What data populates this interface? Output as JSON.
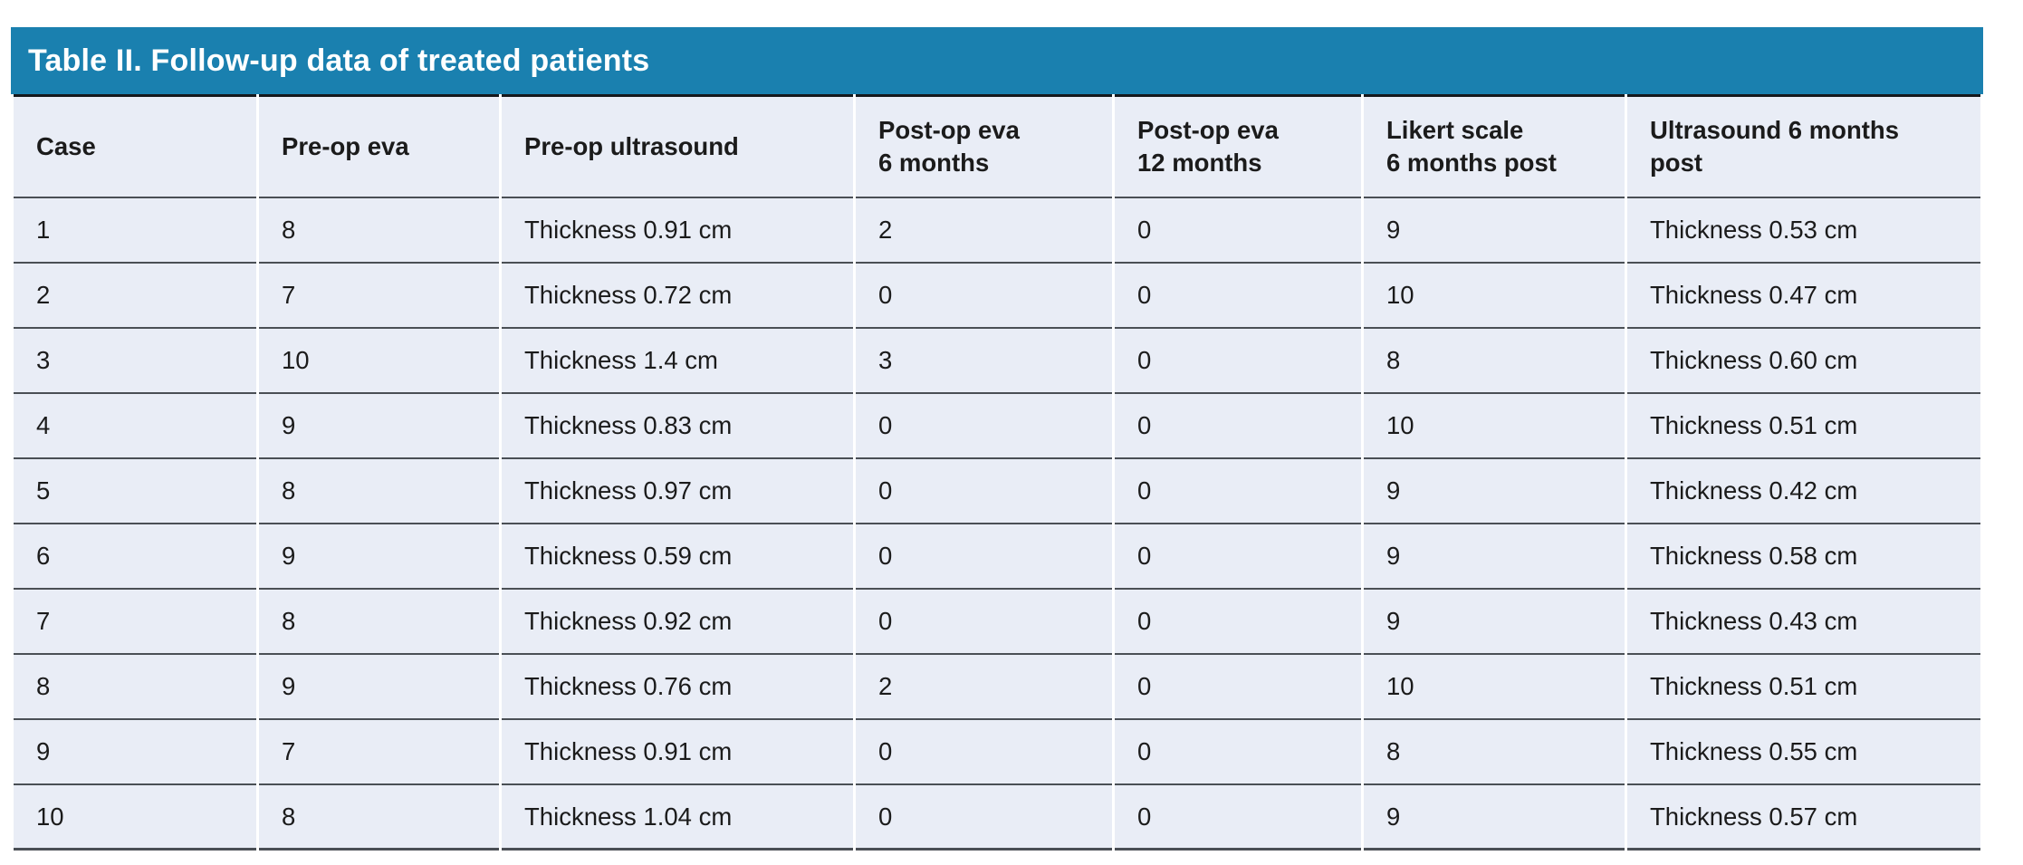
{
  "table": {
    "title": "Table II. Follow-up data of treated patients",
    "columns": [
      "Case",
      "Pre-op eva",
      "Pre-op ultrasound",
      "Post-op eva\n6 months",
      "Post-op eva\n12 months",
      "Likert scale\n6 months post",
      "Ultrasound 6 months\npost"
    ],
    "rows": [
      [
        "1",
        "8",
        "Thickness 0.91 cm",
        "2",
        "0",
        "9",
        "Thickness 0.53 cm"
      ],
      [
        "2",
        "7",
        "Thickness 0.72 cm",
        "0",
        "0",
        "10",
        "Thickness 0.47 cm"
      ],
      [
        "3",
        "10",
        "Thickness 1.4 cm",
        "3",
        "0",
        "8",
        "Thickness 0.60 cm"
      ],
      [
        "4",
        "9",
        "Thickness 0.83 cm",
        "0",
        "0",
        "10",
        "Thickness 0.51 cm"
      ],
      [
        "5",
        "8",
        "Thickness 0.97 cm",
        "0",
        "0",
        "9",
        "Thickness 0.42 cm"
      ],
      [
        "6",
        "9",
        "Thickness 0.59 cm",
        "0",
        "0",
        "9",
        "Thickness 0.58 cm"
      ],
      [
        "7",
        "8",
        "Thickness 0.92 cm",
        "0",
        "0",
        "9",
        "Thickness 0.43 cm"
      ],
      [
        "8",
        "9",
        "Thickness 0.76 cm",
        "2",
        "0",
        "10",
        "Thickness 0.51 cm"
      ],
      [
        "9",
        "7",
        "Thickness 0.91 cm",
        "0",
        "0",
        "8",
        "Thickness 0.55 cm"
      ],
      [
        "10",
        "8",
        "Thickness 1.04 cm",
        "0",
        "0",
        "9",
        "Thickness 0.57 cm"
      ]
    ]
  },
  "colors": {
    "title_bg": "#1a80af",
    "title_text": "#ffffff",
    "cell_bg": "#e9edf6",
    "body_text": "#1b1b1b",
    "divider": "#4a4f55",
    "top_rule": "#15181c"
  }
}
